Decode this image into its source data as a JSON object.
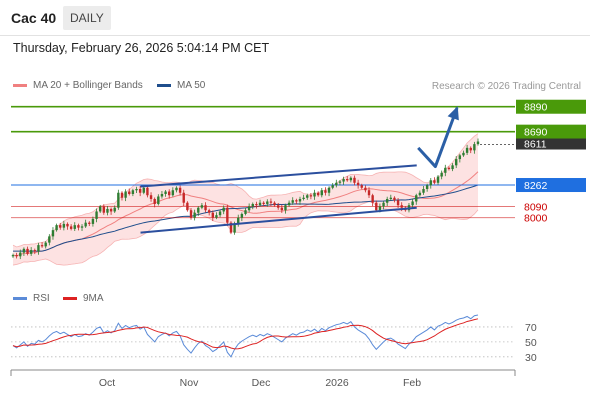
{
  "header": {
    "title": "Cac 40",
    "period": "DAILY"
  },
  "timestamp": "Thursday, February 26, 2026 5:04:14 PM CET",
  "copyright": "Research © 2026 Trading Central",
  "legend_main": [
    {
      "label": "MA 20 + Bollinger Bands",
      "color": "#f08080"
    },
    {
      "label": "MA 50",
      "color": "#1f4e8c"
    }
  ],
  "legend_rsi": [
    {
      "label": "RSI",
      "color": "#5b8bd8"
    },
    {
      "label": "9MA",
      "color": "#dd2222"
    }
  ],
  "colors": {
    "resistance": "#4a9a0a",
    "pivot": "#1f6fe0",
    "support": "#cc0000",
    "trend": "#2b4f9e",
    "candle_up": "#2e7d32",
    "candle_down": "#c62828",
    "band_fill": "#fde2e2",
    "ma20": "#f08080",
    "ma50": "#1f4e8c",
    "rsi": "#5b8bd8",
    "rsi_ma": "#dd2222",
    "arrow": "#2b5fa6",
    "last": "#333333"
  },
  "chart_data": [
    {
      "type": "candlestick",
      "title": "Cac 40",
      "period": "DAILY",
      "x_ticks": [
        "Oct",
        "Nov",
        "Dec",
        "2026",
        "Feb"
      ],
      "last_price": 8611,
      "ylim": [
        7460,
        8960
      ],
      "levels": [
        {
          "value": 8890,
          "label": "8890",
          "kind": "resistance"
        },
        {
          "value": 8690,
          "label": "8690",
          "kind": "resistance"
        },
        {
          "value": 8262,
          "label": "8262",
          "kind": "pivot"
        },
        {
          "value": 8090,
          "label": "8090",
          "kind": "support"
        },
        {
          "value": 8000,
          "label": "8000",
          "kind": "support"
        }
      ],
      "trend_channel": {
        "upper": [
          [
            0.257,
            8250
          ],
          [
            0.805,
            8420
          ]
        ],
        "lower": [
          [
            0.257,
            7880
          ],
          [
            0.805,
            8080
          ]
        ]
      },
      "projection_arrow": [
        [
          0.808,
          8560
        ],
        [
          0.842,
          8410
        ],
        [
          0.885,
          8880
        ]
      ],
      "series": {
        "close": [
          7700,
          7690,
          7720,
          7750,
          7710,
          7740,
          7730,
          7780,
          7770,
          7800,
          7850,
          7900,
          7940,
          7920,
          7950,
          7930,
          7910,
          7940,
          7920,
          7930,
          7960,
          7950,
          7990,
          8050,
          8090,
          8040,
          8070,
          8050,
          8080,
          8200,
          8160,
          8210,
          8190,
          8220,
          8230,
          8200,
          8240,
          8180,
          8150,
          8110,
          8170,
          8190,
          8210,
          8180,
          8220,
          8240,
          8200,
          8120,
          8060,
          8000,
          8040,
          8080,
          8100,
          8060,
          8040,
          8000,
          8020,
          8050,
          8080,
          7960,
          7880,
          7950,
          8000,
          8030,
          8060,
          8090,
          8110,
          8100,
          8120,
          8110,
          8130,
          8120,
          8100,
          8080,
          8060,
          8100,
          8120,
          8140,
          8130,
          8150,
          8160,
          8180,
          8170,
          8200,
          8180,
          8220,
          8200,
          8240,
          8260,
          8280,
          8290,
          8310,
          8300,
          8320,
          8280,
          8260,
          8240,
          8220,
          8180,
          8120,
          8060,
          8090,
          8120,
          8150,
          8160,
          8140,
          8100,
          8080,
          8060,
          8100,
          8130,
          8180,
          8200,
          8230,
          8260,
          8300,
          8280,
          8330,
          8360,
          8400,
          8390,
          8420,
          8470,
          8500,
          8520,
          8560,
          8540,
          8590,
          8611
        ],
        "rsi": [
          45,
          42,
          46,
          50,
          44,
          48,
          47,
          52,
          50,
          53,
          58,
          62,
          64,
          61,
          63,
          60,
          57,
          60,
          57,
          58,
          61,
          59,
          63,
          68,
          70,
          62,
          65,
          62,
          65,
          75,
          68,
          72,
          69,
          71,
          72,
          67,
          70,
          60,
          55,
          50,
          57,
          60,
          62,
          58,
          62,
          64,
          58,
          46,
          40,
          35,
          42,
          48,
          51,
          45,
          42,
          37,
          40,
          45,
          50,
          36,
          30,
          40,
          47,
          51,
          54,
          57,
          59,
          57,
          60,
          58,
          61,
          59,
          56,
          53,
          50,
          55,
          58,
          61,
          59,
          62,
          63,
          66,
          64,
          67,
          63,
          68,
          65,
          69,
          71,
          73,
          74,
          76,
          74,
          77,
          70,
          66,
          63,
          60,
          54,
          46,
          40,
          45,
          50,
          54,
          55,
          52,
          47,
          44,
          41,
          47,
          51,
          57,
          60,
          63,
          66,
          70,
          66,
          71,
          73,
          76,
          74,
          76,
          79,
          81,
          82,
          84,
          81,
          85,
          86
        ],
        "rsi_levels": [
          70,
          50,
          30
        ]
      }
    }
  ]
}
